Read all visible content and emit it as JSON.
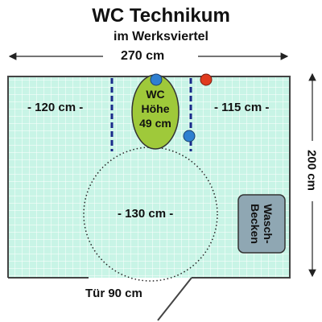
{
  "header": {
    "title": "WC Technikum",
    "subtitle": "im Werksviertel"
  },
  "dimensions": {
    "width_label": "270 cm",
    "height_label": "200 cm",
    "left_clearance": "- 120 cm -",
    "right_clearance": "- 115 cm -",
    "turning_circle": "- 130 cm -",
    "door_label": "Tür 90 cm"
  },
  "toilet": {
    "line1": "WC",
    "line2": "Höhe",
    "line3": "49 cm"
  },
  "sink": {
    "line1": "Wasch-",
    "line2": "Becken"
  },
  "colors": {
    "floor": "#c8f4e6",
    "grid": "#ffffff",
    "wall": "#444444",
    "toilet": "#9fc93a",
    "sink": "#8fa7b3",
    "grab_bar": "#1a2a8a",
    "blue_dot": "#2f7fd0",
    "red_dot": "#e03a1e"
  }
}
